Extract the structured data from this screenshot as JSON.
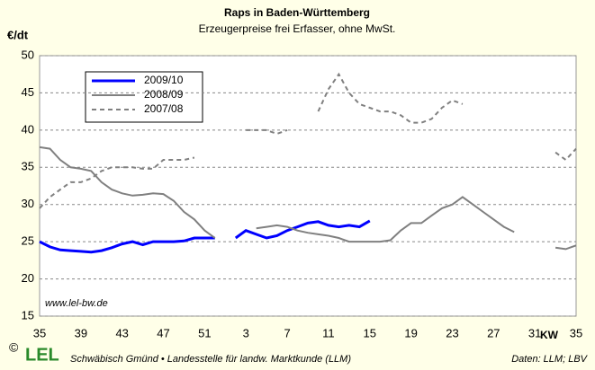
{
  "chart_data": {
    "type": "line",
    "title": "Raps in Baden-Württemberg",
    "subtitle": "Erzeugerpreise frei Erfasser, ohne MwSt.",
    "y_label": "€/dt",
    "x_label": "KW",
    "watermark": "www.lel-bw.de",
    "footer": {
      "copyright": "©",
      "logo": "LEL",
      "org": "Schwäbisch Gmünd • Landesstelle für landw. Marktkunde (LLM)",
      "source": "Daten: LLM; LBV"
    },
    "categories": [
      "35",
      null,
      null,
      null,
      "39",
      null,
      null,
      null,
      "43",
      null,
      null,
      null,
      "47",
      null,
      null,
      null,
      "51",
      null,
      null,
      null,
      "3",
      null,
      null,
      null,
      "7",
      null,
      null,
      null,
      "11",
      null,
      null,
      null,
      "15",
      null,
      null,
      null,
      "19",
      null,
      null,
      null,
      "23",
      null,
      null,
      null,
      "27",
      null,
      null,
      null,
      "31",
      null,
      null,
      null,
      "35"
    ],
    "ylim": [
      15,
      50
    ],
    "yticks": [
      15,
      20,
      25,
      30,
      35,
      40,
      45,
      50
    ],
    "grid": true,
    "series": [
      {
        "name": "2009/10",
        "color": "#0000ff",
        "dashed": false,
        "values": [
          25,
          24.3,
          23.9,
          23.8,
          23.7,
          23.6,
          23.8,
          24.2,
          24.7,
          25,
          24.6,
          25,
          25,
          25,
          25.1,
          25.5,
          25.5,
          25.5,
          null,
          25.5,
          26.5,
          26,
          25.5,
          25.8,
          26.5,
          27,
          27.5,
          27.7,
          27.2,
          27,
          27.2,
          27,
          27.8,
          null,
          null,
          null,
          null,
          null,
          null,
          null,
          null,
          null,
          null,
          null,
          null,
          null,
          null,
          null,
          null,
          null,
          null,
          null,
          null
        ]
      },
      {
        "name": "2008/09",
        "color": "#808080",
        "dashed": false,
        "values": [
          37.7,
          37.5,
          36,
          35,
          34.8,
          34.5,
          33,
          32,
          31.5,
          31.2,
          31.3,
          31.5,
          31.4,
          30.5,
          29,
          28,
          26.5,
          25.5,
          null,
          null,
          null,
          26.8,
          27,
          27.2,
          27,
          26.5,
          26.2,
          26,
          25.8,
          25.5,
          25,
          25,
          25,
          25,
          25.2,
          26.5,
          27.5,
          27.5,
          28.5,
          29.5,
          30,
          31,
          30,
          29,
          28,
          27,
          26.3,
          null,
          null,
          null,
          24.2,
          24,
          24.5
        ]
      },
      {
        "name": "2007/08",
        "color": "#808080",
        "dashed": true,
        "values": [
          29.5,
          31,
          32,
          33,
          33,
          33.5,
          34.5,
          35,
          35,
          35,
          34.8,
          34.8,
          36,
          36,
          36,
          36.3,
          null,
          null,
          null,
          null,
          40,
          40,
          40,
          39.5,
          40,
          null,
          null,
          42.5,
          45.5,
          47.5,
          45,
          43.5,
          43,
          42.5,
          42.5,
          42,
          41,
          41,
          41.5,
          43,
          44,
          43.5,
          null,
          null,
          null,
          null,
          null,
          null,
          null,
          null,
          37,
          36,
          37.5
        ]
      }
    ]
  }
}
